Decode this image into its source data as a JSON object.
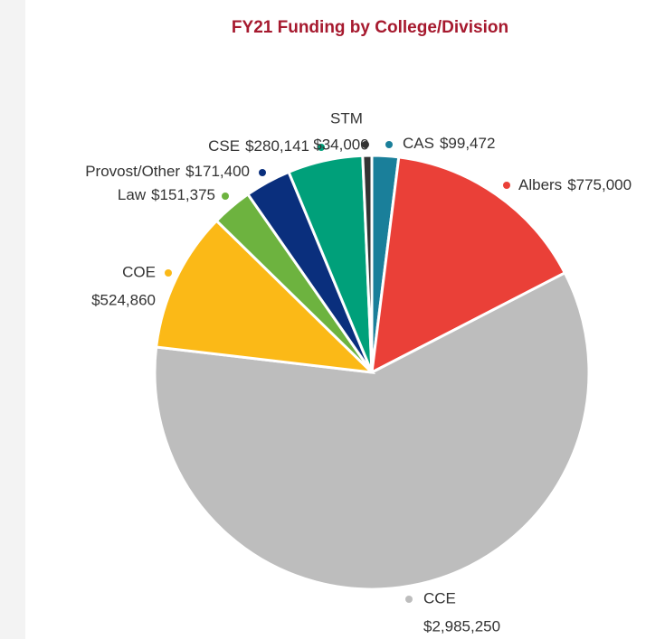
{
  "chart_data": {
    "type": "pie",
    "title": "FY21 Funding by College/Division",
    "categories": [
      "CAS",
      "Albers",
      "CCE",
      "COE",
      "Law",
      "Provost/Other",
      "CSE",
      "STM"
    ],
    "values": [
      99472,
      775000,
      2985250,
      524860,
      151375,
      171400,
      280141,
      34000
    ],
    "value_labels": [
      "$99,472",
      "$775,000",
      "$2,985,250",
      "$524,860",
      "$151,375",
      "$171,400",
      "$280,141",
      "$34,000"
    ],
    "colors": [
      "#1a7f9a",
      "#ea4038",
      "#bdbdbd",
      "#fbb917",
      "#6db33f",
      "#0a2f7d",
      "#00a07a",
      "#333333"
    ]
  }
}
